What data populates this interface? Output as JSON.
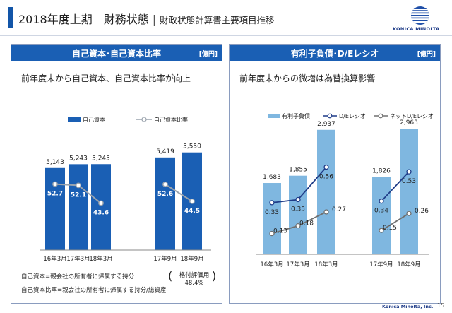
{
  "header": {
    "title": "2018年度上期　財務状態",
    "separator": "|",
    "subtitle": "財政状態計算書主要項目推移",
    "logo_text": "KONICA MINOLTA"
  },
  "left_panel": {
    "title": "自己資本･自己資本比率",
    "unit": "[億円]",
    "headline": "前年度末から自己資本、自己資本比率が向上",
    "note1": "自己資本=親会社の所有者に帰属する持分",
    "note2": "自己資本比率=親会社の所有者に帰属する持分/総資産",
    "rating_line1": "格付評価用",
    "rating_line2": "48.4%",
    "paren_open": "(",
    "paren_close": ")"
  },
  "right_panel": {
    "title": "有利子負債･D/Eレシオ",
    "unit": "[億円]",
    "headline": "前年度末からの微増は為替換算影響"
  },
  "chart_data": [
    {
      "type": "bar",
      "categories": [
        "16年3月",
        "17年3月",
        "18年3月",
        "17年9月",
        "18年9月"
      ],
      "series": [
        {
          "name": "自己資本",
          "type": "bar",
          "values": [
            5143,
            5243,
            5245,
            5419,
            5550
          ],
          "labels": [
            "5,143",
            "5,243",
            "5,245",
            "5,419",
            "5,550"
          ]
        },
        {
          "name": "自己資本比率",
          "type": "line",
          "values": [
            52.7,
            52.1,
            43.6,
            52.6,
            44.5
          ],
          "labels": [
            "52.7",
            "52.1",
            "43.6",
            "52.6",
            "44.5"
          ]
        }
      ],
      "groups": [
        [
          0,
          1,
          2
        ],
        [
          3,
          4
        ]
      ],
      "legend": "top",
      "colors": {
        "bar": "#1a5fb4",
        "line": "#9aa3ad"
      }
    },
    {
      "type": "bar",
      "categories": [
        "16年3月",
        "17年3月",
        "18年3月",
        "17年9月",
        "18年9月"
      ],
      "series": [
        {
          "name": "有利子負債",
          "type": "bar",
          "values": [
            1683,
            1855,
            2937,
            1826,
            2963
          ],
          "labels": [
            "1,683",
            "1,855",
            "2,937",
            "1,826",
            "2,963"
          ]
        },
        {
          "name": "D/Eレシオ",
          "type": "line",
          "values": [
            0.33,
            0.35,
            0.56,
            0.34,
            0.53
          ],
          "labels": [
            "0.33",
            "0.35",
            "0.56",
            "0.34",
            "0.53"
          ]
        },
        {
          "name": "ネットD/Eレシオ",
          "type": "line",
          "values": [
            0.13,
            0.18,
            0.27,
            0.15,
            0.26
          ],
          "labels": [
            "0.13",
            "0.18",
            "0.27",
            "0.15",
            "0.26"
          ]
        }
      ],
      "groups": [
        [
          0,
          1,
          2
        ],
        [
          3,
          4
        ]
      ],
      "legend": "top",
      "colors": {
        "bar": "#7fb7e0",
        "de_line": "#1f3c88",
        "net_line": "#707070"
      }
    }
  ],
  "footer": {
    "brand": "Konica Minolta, Inc.",
    "page": "15"
  }
}
